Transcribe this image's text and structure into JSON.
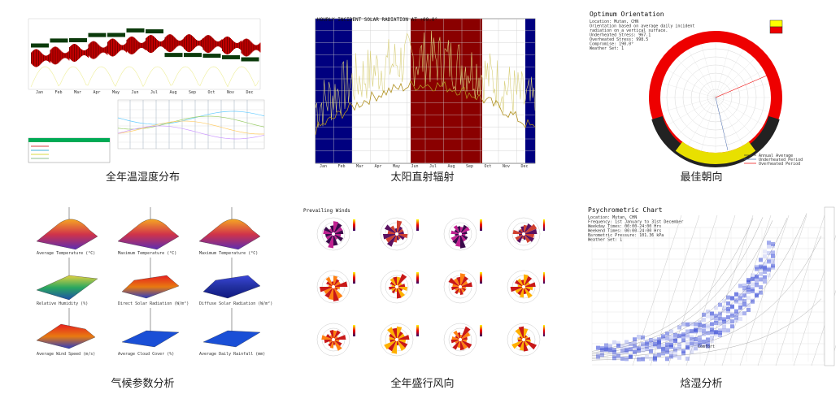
{
  "captions": [
    "全年温湿度分布",
    "太阳直射辐射",
    "最佳朝向",
    "气候参数分析",
    "全年盛行风向",
    "焓湿分析"
  ],
  "panel_titles": {
    "radiation": "HOURLY INCIDENT SOLAR RADIATION AT +00.0°",
    "orientation": "Optimum Orientation",
    "winds": "Prevailing Winds",
    "psychro": "Psychrometric Chart"
  },
  "orientation_info": [
    "Location: Mutan, CHN",
    "Orientation based on average daily incident",
    "radiation on a vertical surface.",
    "Underheated Stress: 967.1",
    "Overheated Stress: 998.5",
    "Compromise: 190.0°",
    "Weather Set: 1"
  ],
  "psychro_info": [
    "Location: Mutan, CHN",
    "Frequency: 1st January to 31st December",
    "Weekday Times: 00:00-24:00 Hrs",
    "Weekend Times: 00:00-24:00 Hrs",
    "Barometric Pressure: 101.36 kPa",
    "Weather Set: 1"
  ],
  "orientation_legend": [
    "Annual Average",
    "Underheated Period",
    "Overheated Period"
  ],
  "month_ticks": [
    "Jan",
    "Feb",
    "Mar",
    "Apr",
    "May",
    "Jun",
    "Jul",
    "Aug",
    "Sep",
    "Oct",
    "Nov",
    "Dec"
  ],
  "surface_labels": [
    "Average Temperature (°C)",
    "Maximum Temperature (°C)",
    "Maximum Temperature (°C)",
    "Relative Humidity (%)",
    "Direct Solar Radiation (W/m²)",
    "Diffuse Solar Radiation (W/m²)",
    "Average Wind Speed (m/s)",
    "Average Cloud Cover (%)",
    "Average Daily Rainfall (mm)"
  ],
  "psychro_label": "Comfort",
  "colors": {
    "redband": "#c00000",
    "navy": "#00007f",
    "maroon": "#8a0000",
    "yellow": "#ffff00",
    "blue": "#3333cc"
  }
}
